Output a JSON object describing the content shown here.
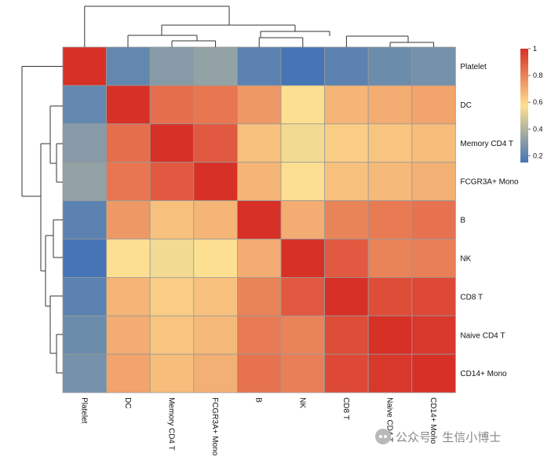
{
  "chart_data": {
    "type": "heatmap",
    "title": "",
    "rows": [
      "Platelet",
      "DC",
      "Memory CD4 T",
      "FCGR3A+ Mono",
      "B",
      "NK",
      "CD8 T",
      "Naive CD4 T",
      "CD14+ Mono"
    ],
    "columns": [
      "Platelet",
      "DC",
      "Memory CD4 T",
      "FCGR3A+ Mono",
      "B",
      "NK",
      "CD8 T",
      "Naive CD4 T",
      "CD14+ Mono"
    ],
    "values": [
      [
        1.0,
        0.22,
        0.3,
        0.33,
        0.2,
        0.15,
        0.2,
        0.24,
        0.26
      ],
      [
        0.22,
        1.0,
        0.85,
        0.83,
        0.75,
        0.57,
        0.68,
        0.7,
        0.72
      ],
      [
        0.3,
        0.85,
        1.0,
        0.9,
        0.65,
        0.55,
        0.62,
        0.64,
        0.66
      ],
      [
        0.33,
        0.83,
        0.9,
        1.0,
        0.68,
        0.57,
        0.65,
        0.67,
        0.69
      ],
      [
        0.2,
        0.75,
        0.65,
        0.68,
        1.0,
        0.7,
        0.8,
        0.82,
        0.84
      ],
      [
        0.15,
        0.57,
        0.55,
        0.57,
        0.7,
        1.0,
        0.9,
        0.8,
        0.81
      ],
      [
        0.2,
        0.68,
        0.62,
        0.65,
        0.8,
        0.9,
        1.0,
        0.93,
        0.94
      ],
      [
        0.24,
        0.7,
        0.64,
        0.67,
        0.82,
        0.8,
        0.93,
        1.0,
        0.98
      ],
      [
        0.26,
        0.72,
        0.66,
        0.69,
        0.84,
        0.81,
        0.94,
        0.98,
        1.0
      ]
    ],
    "colorbar": {
      "range": [
        0.15,
        1.0
      ],
      "ticks": [
        "0.2",
        "0.4",
        "0.6",
        "0.8",
        "1"
      ],
      "tick_values": [
        0.2,
        0.4,
        0.6,
        0.8,
        1.0
      ],
      "colors": [
        "#4575b4",
        "#fee090",
        "#d73027"
      ]
    },
    "dendrograms": "both",
    "grid": true,
    "legend_position": "top-right"
  },
  "watermark": {
    "text": "公众号 · 生信小博士",
    "icon": "wechat-icon"
  }
}
